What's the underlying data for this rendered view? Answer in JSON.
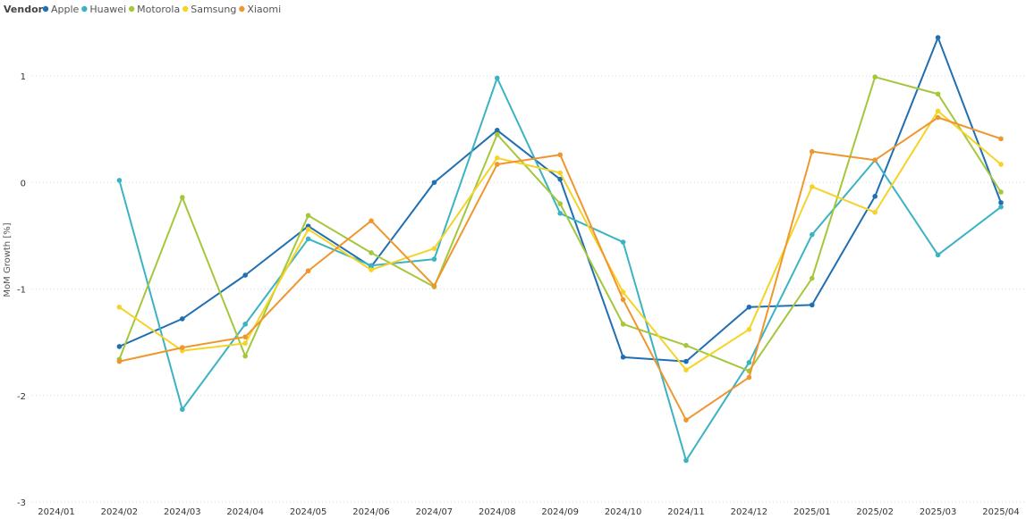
{
  "chart_data": {
    "type": "line",
    "legend_title": "Vendor",
    "legend_position": "top-left",
    "ylabel": "MoM Growth [%]",
    "ylim": [
      -3,
      1.5
    ],
    "yticks": [
      -3,
      -2,
      -1,
      0,
      1
    ],
    "grid": true,
    "x": [
      "2024/01",
      "2024/02",
      "2024/03",
      "2024/04",
      "2024/05",
      "2024/06",
      "2024/07",
      "2024/08",
      "2024/09",
      "2024/10",
      "2024/11",
      "2024/12",
      "2025/01",
      "2025/02",
      "2025/03",
      "2025/04"
    ],
    "series": [
      {
        "name": "Apple",
        "color": "#1f6fb2",
        "values": [
          null,
          -1.54,
          -1.28,
          -0.87,
          -0.41,
          -0.79,
          0.0,
          0.49,
          0.03,
          -1.64,
          -1.68,
          -1.17,
          -1.15,
          -0.13,
          1.36,
          -0.19
        ]
      },
      {
        "name": "Huawei",
        "color": "#3bb3c3",
        "values": [
          null,
          0.02,
          -2.13,
          -1.33,
          -0.53,
          -0.78,
          -0.72,
          0.98,
          -0.29,
          -0.56,
          -2.61,
          -1.69,
          -0.49,
          0.21,
          -0.68,
          -0.23
        ]
      },
      {
        "name": "Motorola",
        "color": "#a4c73c",
        "values": [
          null,
          -1.66,
          -0.14,
          -1.63,
          -0.31,
          -0.66,
          -0.98,
          0.45,
          -0.2,
          -1.33,
          -1.53,
          -1.77,
          -0.9,
          0.99,
          0.83,
          -0.09
        ]
      },
      {
        "name": "Samsung",
        "color": "#f5d327",
        "values": [
          null,
          -1.17,
          -1.58,
          -1.51,
          -0.44,
          -0.82,
          -0.62,
          0.23,
          0.09,
          -1.03,
          -1.76,
          -1.38,
          -0.04,
          -0.28,
          0.67,
          0.17
        ]
      },
      {
        "name": "Xiaomi",
        "color": "#f0962e",
        "values": [
          null,
          -1.68,
          -1.55,
          -1.45,
          -0.83,
          -0.36,
          -0.97,
          0.17,
          0.26,
          -1.1,
          -2.23,
          -1.83,
          0.29,
          0.21,
          0.61,
          0.41
        ]
      }
    ]
  }
}
